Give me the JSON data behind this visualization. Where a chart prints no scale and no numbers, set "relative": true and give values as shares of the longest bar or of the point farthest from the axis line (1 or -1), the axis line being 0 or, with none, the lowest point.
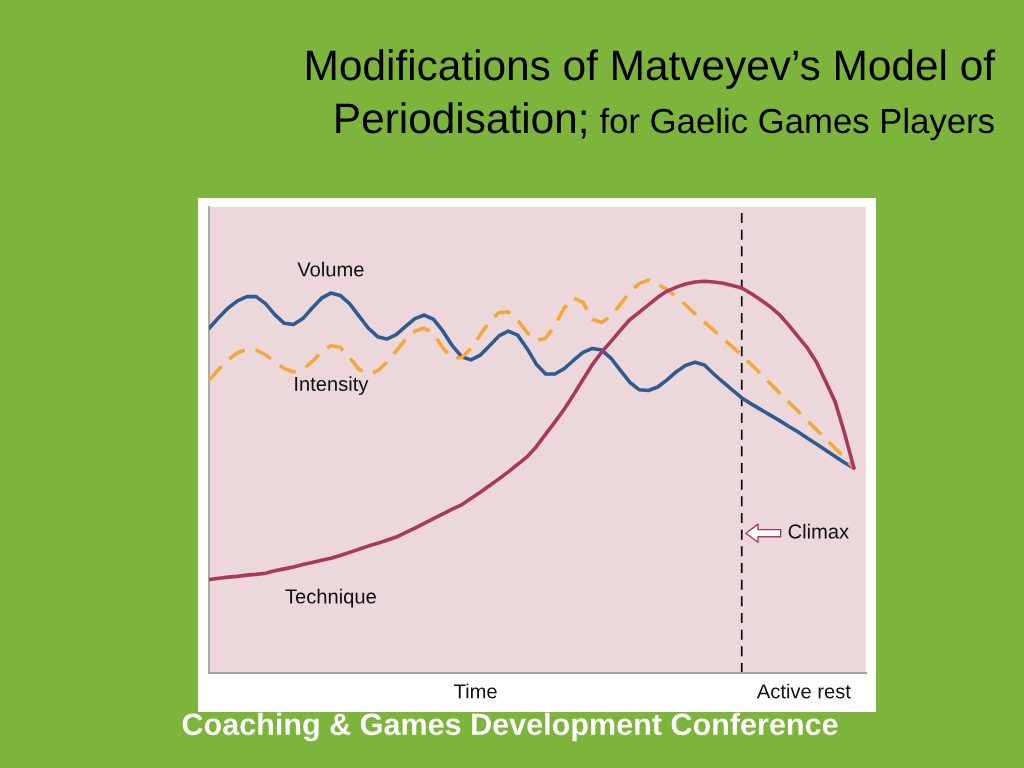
{
  "chart_data": {
    "type": "line",
    "title": "Modifications of Matveyev’s Model of",
    "subtitle": "Periodisation; for Gaelic Games Players",
    "xlabel": "Time",
    "relative": true,
    "categories": [
      null,
      null,
      null,
      null,
      null,
      null,
      null,
      null,
      null,
      null,
      null,
      null,
      null,
      null,
      null,
      null,
      null,
      null,
      null,
      null,
      null,
      null,
      null,
      null,
      null,
      null,
      null,
      null,
      null,
      null,
      null,
      null,
      null,
      null,
      null,
      null,
      null,
      null,
      null,
      null,
      null,
      null,
      null,
      null,
      null,
      null,
      null,
      null,
      null,
      null,
      null,
      null,
      null,
      null,
      null,
      null,
      null,
      null,
      null,
      null,
      null,
      null,
      null,
      null,
      null,
      null,
      null,
      null,
      null,
      null
    ],
    "series": [
      {
        "name": "Volume",
        "color": "#2d5b92",
        "line_style": "solid",
        "values": [
          0.878,
          0.905,
          0.929,
          0.947,
          0.958,
          0.958,
          0.94,
          0.912,
          0.89,
          0.887,
          0.902,
          0.929,
          0.954,
          0.967,
          0.961,
          0.94,
          0.909,
          0.878,
          0.856,
          0.85,
          0.861,
          0.882,
          0.902,
          0.911,
          0.9,
          0.87,
          0.833,
          0.805,
          0.797,
          0.809,
          0.833,
          0.858,
          0.87,
          0.86,
          0.826,
          0.786,
          0.761,
          0.761,
          0.775,
          0.796,
          0.816,
          0.826,
          0.822,
          0.801,
          0.77,
          0.74,
          0.721,
          0.719,
          0.728,
          0.746,
          0.767,
          0.783,
          0.791,
          0.784,
          0.761,
          0.74,
          0.72,
          0.7,
          0.685,
          0.671,
          0.657,
          0.643,
          0.628,
          0.614,
          0.598,
          0.583,
          0.567,
          0.551,
          0.535,
          0.522
        ]
      },
      {
        "name": "Intensity",
        "color": "#f2a93b",
        "line_style": "dashed",
        "values": [
          0.746,
          0.773,
          0.797,
          0.815,
          0.824,
          0.822,
          0.81,
          0.792,
          0.775,
          0.766,
          0.772,
          0.793,
          0.817,
          0.833,
          0.829,
          0.803,
          0.773,
          0.761,
          0.769,
          0.791,
          0.82,
          0.849,
          0.87,
          0.878,
          0.863,
          0.827,
          0.801,
          0.803,
          0.826,
          0.861,
          0.895,
          0.917,
          0.919,
          0.898,
          0.867,
          0.846,
          0.852,
          0.886,
          0.929,
          0.955,
          0.943,
          0.9,
          0.892,
          0.909,
          0.938,
          0.969,
          0.991,
          1.0,
          0.989,
          0.976,
          0.957,
          0.936,
          0.914,
          0.893,
          0.872,
          0.851,
          0.83,
          0.809,
          0.785,
          0.762,
          0.738,
          0.714,
          0.69,
          0.667,
          0.643,
          0.619,
          0.595,
          0.572,
          0.548,
          0.522
        ]
      },
      {
        "name": "Technique",
        "color": "#a8385f",
        "line_style": "solid",
        "values": [
          0.238,
          0.241,
          0.244,
          0.246,
          0.249,
          0.251,
          0.254,
          0.26,
          0.265,
          0.27,
          0.276,
          0.281,
          0.287,
          0.292,
          0.299,
          0.307,
          0.315,
          0.323,
          0.33,
          0.338,
          0.346,
          0.357,
          0.369,
          0.381,
          0.393,
          0.405,
          0.417,
          0.428,
          0.444,
          0.46,
          0.477,
          0.494,
          0.512,
          0.531,
          0.55,
          0.576,
          0.608,
          0.639,
          0.672,
          0.709,
          0.747,
          0.785,
          0.817,
          0.844,
          0.872,
          0.899,
          0.918,
          0.937,
          0.956,
          0.972,
          0.982,
          0.99,
          0.995,
          0.997,
          0.995,
          0.992,
          0.986,
          0.98,
          0.966,
          0.95,
          0.933,
          0.913,
          0.886,
          0.857,
          0.828,
          0.791,
          0.741,
          0.69,
          0.611,
          0.522
        ]
      }
    ],
    "annotations": [
      "Climax",
      "Active rest",
      "Coaching & Games Development Conference"
    ]
  }
}
